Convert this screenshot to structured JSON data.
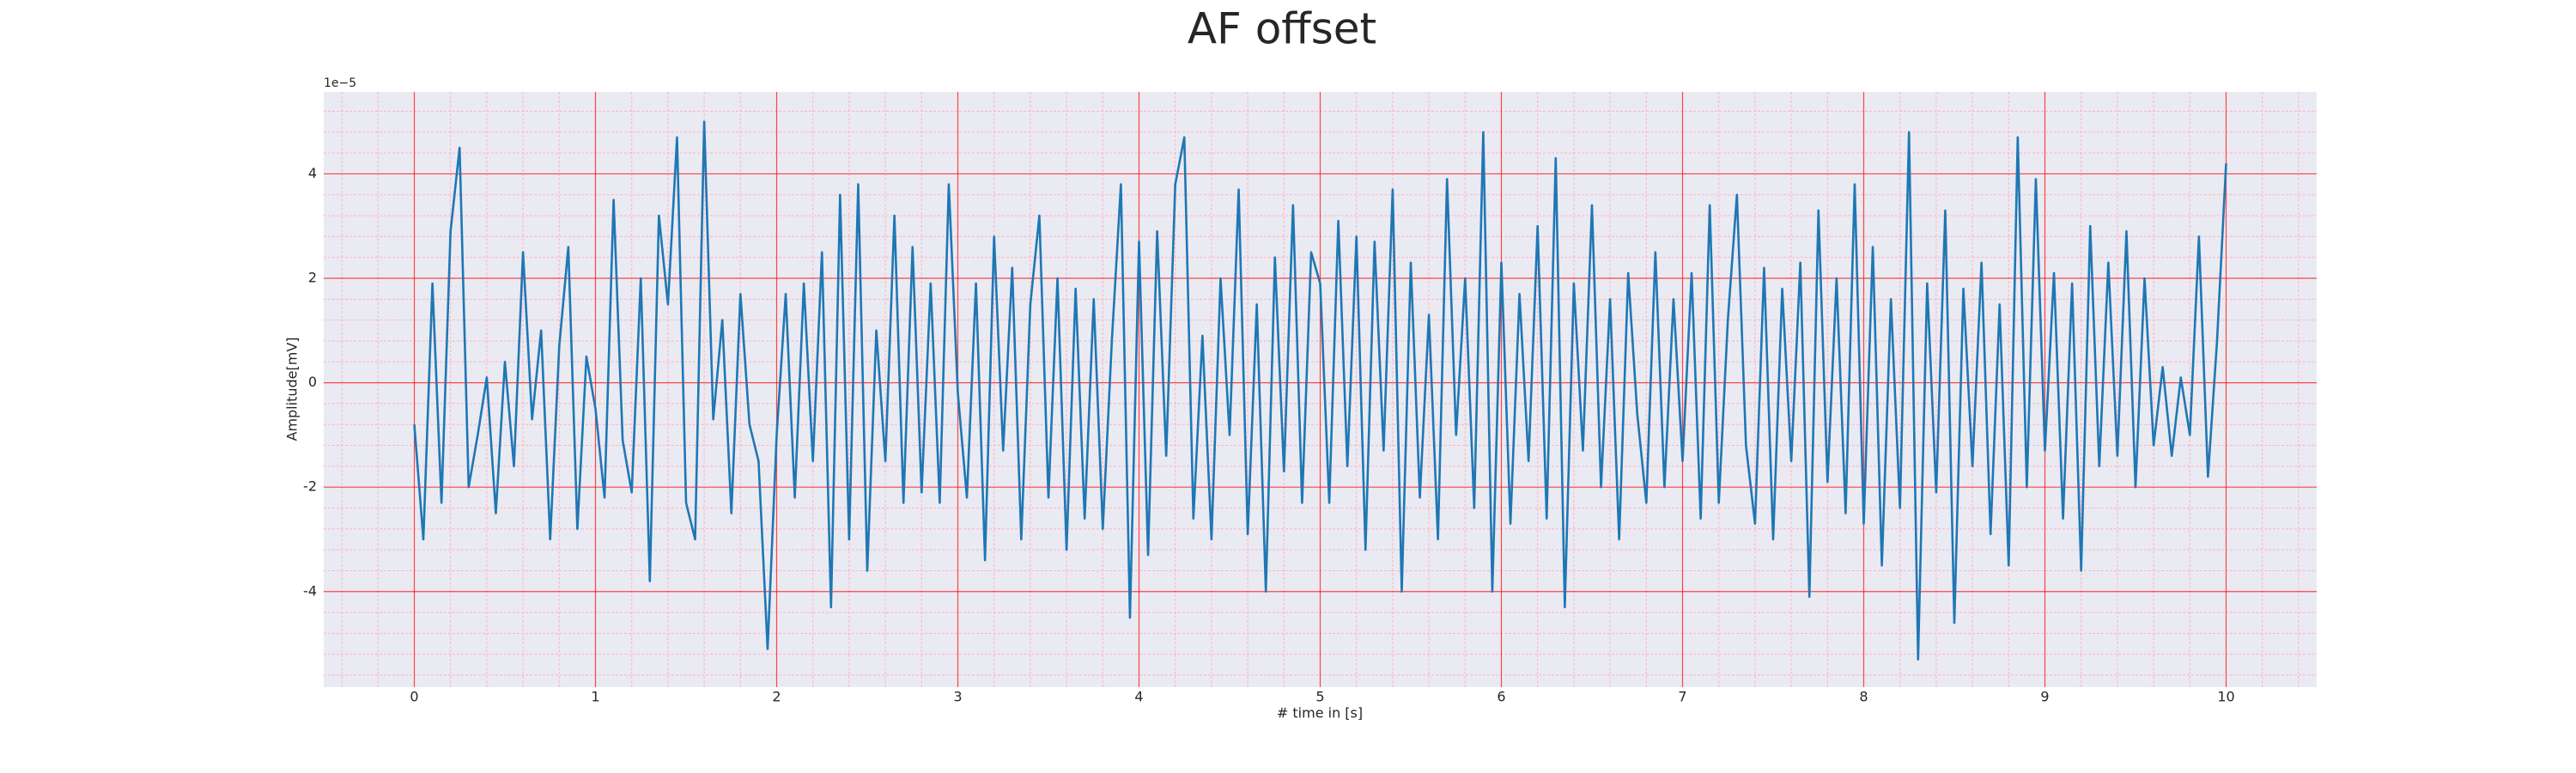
{
  "chart_data": {
    "type": "line",
    "title": "AF offset",
    "x_label": "# time in [s]",
    "y_label": "Amplitude[mV]",
    "offset_label": "1e−5",
    "x": [
      0,
      0.05,
      0.1,
      0.15,
      0.2,
      0.25,
      0.3,
      0.35,
      0.4,
      0.45,
      0.5,
      0.55,
      0.6,
      0.65,
      0.7,
      0.75,
      0.8,
      0.85,
      0.9,
      0.95,
      1,
      1.05,
      1.1,
      1.15,
      1.2,
      1.25,
      1.3,
      1.35,
      1.4,
      1.45,
      1.5,
      1.55,
      1.6,
      1.65,
      1.7,
      1.75,
      1.8,
      1.85,
      1.9,
      1.95,
      2,
      2.05,
      2.1,
      2.15,
      2.2,
      2.25,
      2.3,
      2.35,
      2.4,
      2.45,
      2.5,
      2.55,
      2.6,
      2.65,
      2.7,
      2.75,
      2.8,
      2.85,
      2.9,
      2.95,
      3,
      3.05,
      3.1,
      3.15,
      3.2,
      3.25,
      3.3,
      3.35,
      3.4,
      3.45,
      3.5,
      3.55,
      3.6,
      3.65,
      3.7,
      3.75,
      3.8,
      3.85,
      3.9,
      3.95,
      4,
      4.05,
      4.1,
      4.15,
      4.2,
      4.25,
      4.3,
      4.35,
      4.4,
      4.45,
      4.5,
      4.55,
      4.6,
      4.65,
      4.7,
      4.75,
      4.8,
      4.85,
      4.9,
      4.95,
      5,
      5.05,
      5.1,
      5.15,
      5.2,
      5.25,
      5.3,
      5.35,
      5.4,
      5.45,
      5.5,
      5.55,
      5.6,
      5.65,
      5.7,
      5.75,
      5.8,
      5.85,
      5.9,
      5.95,
      6,
      6.05,
      6.1,
      6.15,
      6.2,
      6.25,
      6.3,
      6.35,
      6.4,
      6.45,
      6.5,
      6.55,
      6.6,
      6.65,
      6.7,
      6.75,
      6.8,
      6.85,
      6.9,
      6.95,
      7,
      7.05,
      7.1,
      7.15,
      7.2,
      7.25,
      7.3,
      7.35,
      7.4,
      7.45,
      7.5,
      7.55,
      7.6,
      7.65,
      7.7,
      7.75,
      7.8,
      7.85,
      7.9,
      7.95,
      8,
      8.05,
      8.1,
      8.15,
      8.2,
      8.25,
      8.3,
      8.35,
      8.4,
      8.45,
      8.5,
      8.55,
      8.6,
      8.65,
      8.7,
      8.75,
      8.8,
      8.85,
      8.9,
      8.95,
      9,
      9.05,
      9.1,
      9.15,
      9.2,
      9.25,
      9.3,
      9.35,
      9.4,
      9.45,
      9.5,
      9.55,
      9.6,
      9.65,
      9.7,
      9.75,
      9.8,
      9.85,
      9.9,
      9.95,
      10
    ],
    "series": [
      {
        "color": "#1f77b4",
        "values": [
          -0.8,
          -3.0,
          1.9,
          -2.3,
          2.9,
          4.5,
          -2.0,
          -1.0,
          0.1,
          -2.5,
          0.4,
          -1.6,
          2.5,
          -0.7,
          1.0,
          -3.0,
          0.7,
          2.6,
          -2.8,
          0.5,
          -0.5,
          -2.2,
          3.5,
          -1.1,
          -2.1,
          2.0,
          -3.8,
          3.2,
          1.5,
          4.7,
          -2.3,
          -3.0,
          5.0,
          -0.7,
          1.2,
          -2.5,
          1.7,
          -0.8,
          -1.5,
          -5.1,
          -1.0,
          1.7,
          -2.2,
          1.9,
          -1.5,
          2.5,
          -4.3,
          3.6,
          -3.0,
          3.8,
          -3.6,
          1.0,
          -1.5,
          3.2,
          -2.3,
          2.6,
          -2.1,
          1.9,
          -2.3,
          3.8,
          -0.2,
          -2.2,
          1.9,
          -3.4,
          2.8,
          -1.3,
          2.2,
          -3.0,
          1.5,
          3.2,
          -2.2,
          2.0,
          -3.2,
          1.8,
          -2.6,
          1.6,
          -2.8,
          0.8,
          3.8,
          -4.5,
          2.7,
          -3.3,
          2.9,
          -1.4,
          3.8,
          4.7,
          -2.6,
          0.9,
          -3.0,
          2.0,
          -1.0,
          3.7,
          -2.9,
          1.5,
          -4.0,
          2.4,
          -1.7,
          3.4,
          -2.3,
          2.5,
          1.9,
          -2.3,
          3.1,
          -1.6,
          2.8,
          -3.2,
          2.7,
          -1.3,
          3.7,
          -4.0,
          2.3,
          -2.2,
          1.3,
          -3.0,
          3.9,
          -1.0,
          2.0,
          -2.4,
          4.8,
          -4.0,
          2.3,
          -2.7,
          1.7,
          -1.5,
          3.0,
          -2.6,
          4.3,
          -4.3,
          1.9,
          -1.3,
          3.4,
          -2.0,
          1.6,
          -3.0,
          2.1,
          -0.6,
          -2.3,
          2.5,
          -2.0,
          1.6,
          -1.5,
          2.1,
          -2.6,
          3.4,
          -2.3,
          1.2,
          3.6,
          -1.2,
          -2.7,
          2.2,
          -3.0,
          1.8,
          -1.5,
          2.3,
          -4.1,
          3.3,
          -1.9,
          2.0,
          -2.5,
          3.8,
          -2.7,
          2.6,
          -3.5,
          1.6,
          -2.4,
          4.8,
          -5.3,
          1.9,
          -2.1,
          3.3,
          -4.6,
          1.8,
          -1.6,
          2.3,
          -2.9,
          1.5,
          -3.5,
          4.7,
          -2.0,
          3.9,
          -1.3,
          2.1,
          -2.6,
          1.9,
          -3.6,
          3.0,
          -1.6,
          2.3,
          -1.4,
          2.9,
          -2.0,
          2.0,
          -1.2,
          0.3,
          -1.4,
          0.1,
          -1.0,
          2.8,
          -1.8,
          0.8,
          4.2
        ]
      }
    ],
    "xlim": [
      -0.5,
      10.5
    ],
    "ylim": [
      -5.83,
      5.57
    ],
    "xticks": [
      0,
      1,
      2,
      3,
      4,
      5,
      6,
      7,
      8,
      9,
      10
    ],
    "yticks": [
      -4,
      -2,
      0,
      2,
      4
    ],
    "x_minor_ticks": [
      -0.4,
      -0.2,
      0.2,
      0.4,
      0.6,
      0.8,
      1.2,
      1.4,
      1.6,
      1.8,
      2.2,
      2.4,
      2.6,
      2.8,
      3.2,
      3.4,
      3.6,
      3.8,
      4.2,
      4.4,
      4.6,
      4.8,
      5.2,
      5.4,
      5.6,
      5.8,
      6.2,
      6.4,
      6.6,
      6.8,
      7.2,
      7.4,
      7.6,
      7.8,
      8.2,
      8.4,
      8.6,
      8.8,
      9.2,
      9.4,
      9.6,
      9.8,
      10.2,
      10.4
    ],
    "y_minor_ticks": [
      -5.6,
      -5.2,
      -4.8,
      -4.4,
      -3.6,
      -3.2,
      -2.8,
      -2.4,
      -1.6,
      -1.2,
      -0.8,
      -0.4,
      0.4,
      0.8,
      1.2,
      1.6,
      2.4,
      2.8,
      3.2,
      3.6,
      4.4,
      4.8,
      5.2
    ],
    "grid": true,
    "grid_color": "#ff0000",
    "minor_grid": true,
    "minor_grid_color": "#ffb3c1",
    "background": "#eaeaf2"
  }
}
